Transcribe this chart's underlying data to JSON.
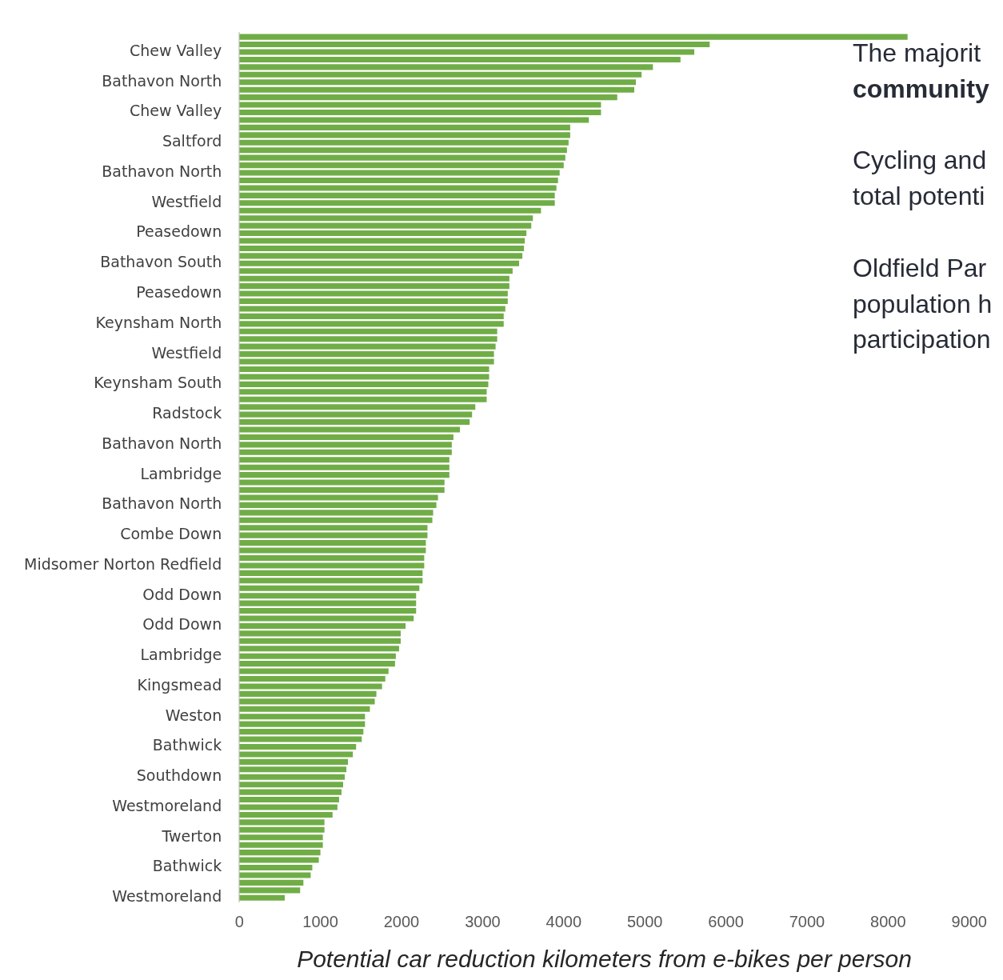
{
  "chart_data": {
    "type": "bar",
    "orientation": "horizontal",
    "xlabel": "Potential car reduction kilometers from e-bikes per person",
    "categories": [
      null,
      null,
      "Chew Valley",
      null,
      null,
      null,
      "Bathavon North",
      null,
      null,
      null,
      "Chew Valley",
      null,
      null,
      null,
      "Saltford",
      null,
      null,
      null,
      "Bathavon North",
      null,
      null,
      null,
      "Westfield",
      null,
      null,
      null,
      "Peasedown",
      null,
      null,
      null,
      "Bathavon South",
      null,
      null,
      null,
      "Peasedown",
      null,
      null,
      null,
      "Keynsham North",
      null,
      null,
      null,
      "Westfield",
      null,
      null,
      null,
      "Keynsham South",
      null,
      null,
      null,
      "Radstock",
      null,
      null,
      null,
      "Bathavon North",
      null,
      null,
      null,
      "Lambridge",
      null,
      null,
      null,
      "Bathavon North",
      null,
      null,
      null,
      "Combe Down",
      null,
      null,
      null,
      "Midsomer Norton Redfield",
      null,
      null,
      null,
      "Odd Down",
      null,
      null,
      null,
      "Odd Down",
      null,
      null,
      null,
      "Lambridge",
      null,
      null,
      null,
      "Kingsmead",
      null,
      null,
      null,
      "Weston",
      null,
      null,
      null,
      "Bathwick",
      null,
      null,
      null,
      "Southdown",
      null,
      null,
      null,
      "Westmoreland",
      null,
      null,
      null,
      "Twerton",
      null,
      null,
      null,
      "Bathwick",
      null,
      null,
      null,
      "Westmoreland"
    ],
    "values": [
      8240,
      5800,
      5610,
      5440,
      5100,
      4960,
      4890,
      4870,
      4660,
      4460,
      4460,
      4310,
      4080,
      4080,
      4060,
      4040,
      4020,
      4000,
      3950,
      3930,
      3910,
      3890,
      3890,
      3720,
      3620,
      3600,
      3540,
      3520,
      3510,
      3490,
      3450,
      3370,
      3330,
      3330,
      3310,
      3310,
      3280,
      3260,
      3260,
      3180,
      3180,
      3160,
      3140,
      3140,
      3080,
      3080,
      3070,
      3050,
      3050,
      2910,
      2870,
      2840,
      2720,
      2640,
      2620,
      2620,
      2590,
      2590,
      2590,
      2530,
      2530,
      2450,
      2430,
      2390,
      2380,
      2320,
      2320,
      2300,
      2300,
      2280,
      2280,
      2260,
      2260,
      2220,
      2180,
      2180,
      2180,
      2150,
      2050,
      1990,
      1990,
      1970,
      1930,
      1920,
      1840,
      1800,
      1760,
      1690,
      1670,
      1610,
      1550,
      1550,
      1530,
      1510,
      1440,
      1400,
      1340,
      1320,
      1300,
      1280,
      1260,
      1230,
      1210,
      1150,
      1050,
      1050,
      1030,
      1030,
      1000,
      980,
      900,
      880,
      790,
      750,
      560
    ],
    "color": "#70ad47",
    "xlim": [
      0,
      9000
    ],
    "xticks": [
      0,
      1000,
      2000,
      3000,
      4000,
      5000,
      6000,
      7000,
      8000,
      9000
    ],
    "annotations": [
      "The majorit",
      "community",
      "Cycling and",
      "total potenti",
      "Oldfield Par",
      "population h",
      "participation"
    ]
  }
}
